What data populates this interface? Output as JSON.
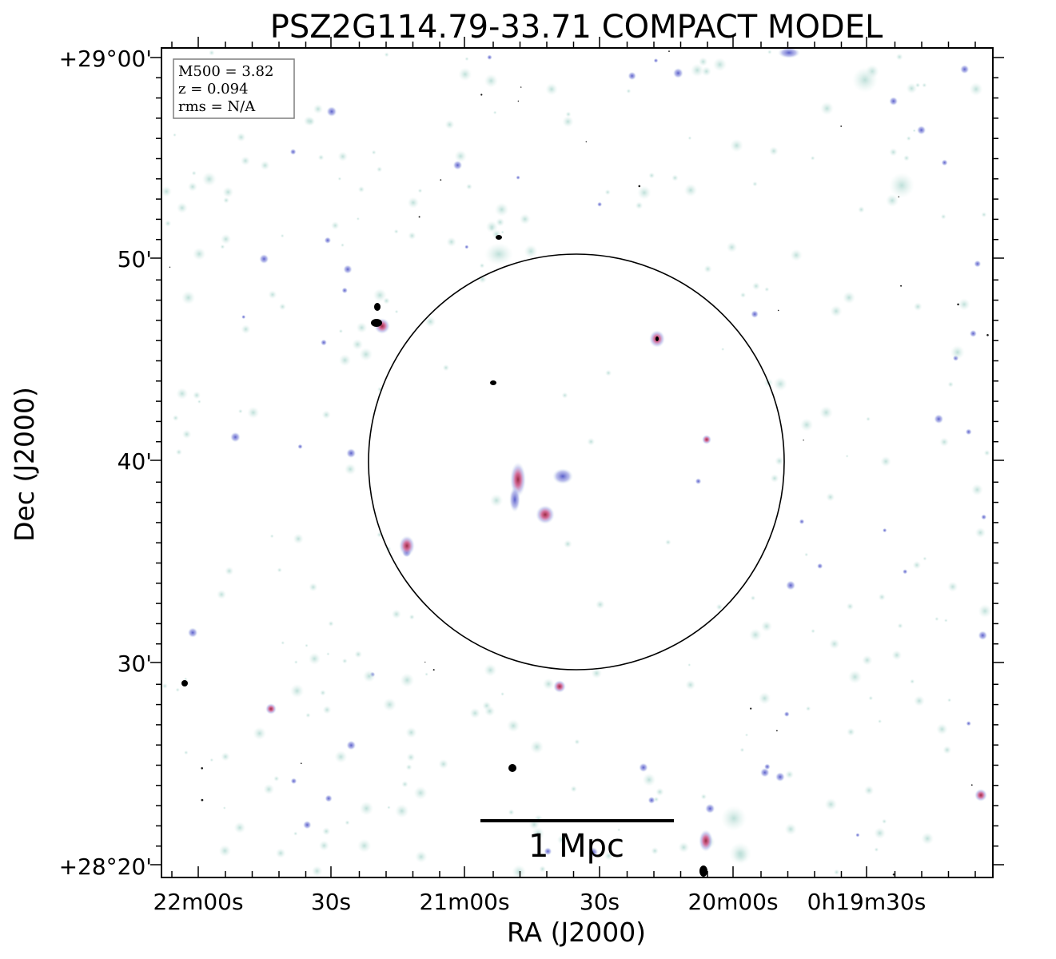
{
  "figure": {
    "title": "PSZ2G114.79-33.71 COMPACT MODEL",
    "xlabel": "RA (J2000)",
    "ylabel": "Dec (J2000)",
    "x_ticks": [
      "22m00s",
      "30s",
      "21m00s",
      "30s",
      "20m00s",
      "0h19m30s"
    ],
    "y_ticks": [
      "+29°00'",
      "50'",
      "40'",
      "30'",
      "+28°20'"
    ],
    "info_box": {
      "lines": [
        "M500 = 3.82",
        "z = 0.094",
        "rms = N/A"
      ]
    },
    "scale_bar": {
      "label": "1 Mpc"
    },
    "colors": {
      "background": "#ffffff",
      "faint_source": "#c7e4df",
      "bright_source": "#7f82d8",
      "core_source": "#c0396a",
      "saturated": "#000000",
      "circle": "#000000"
    }
  }
}
